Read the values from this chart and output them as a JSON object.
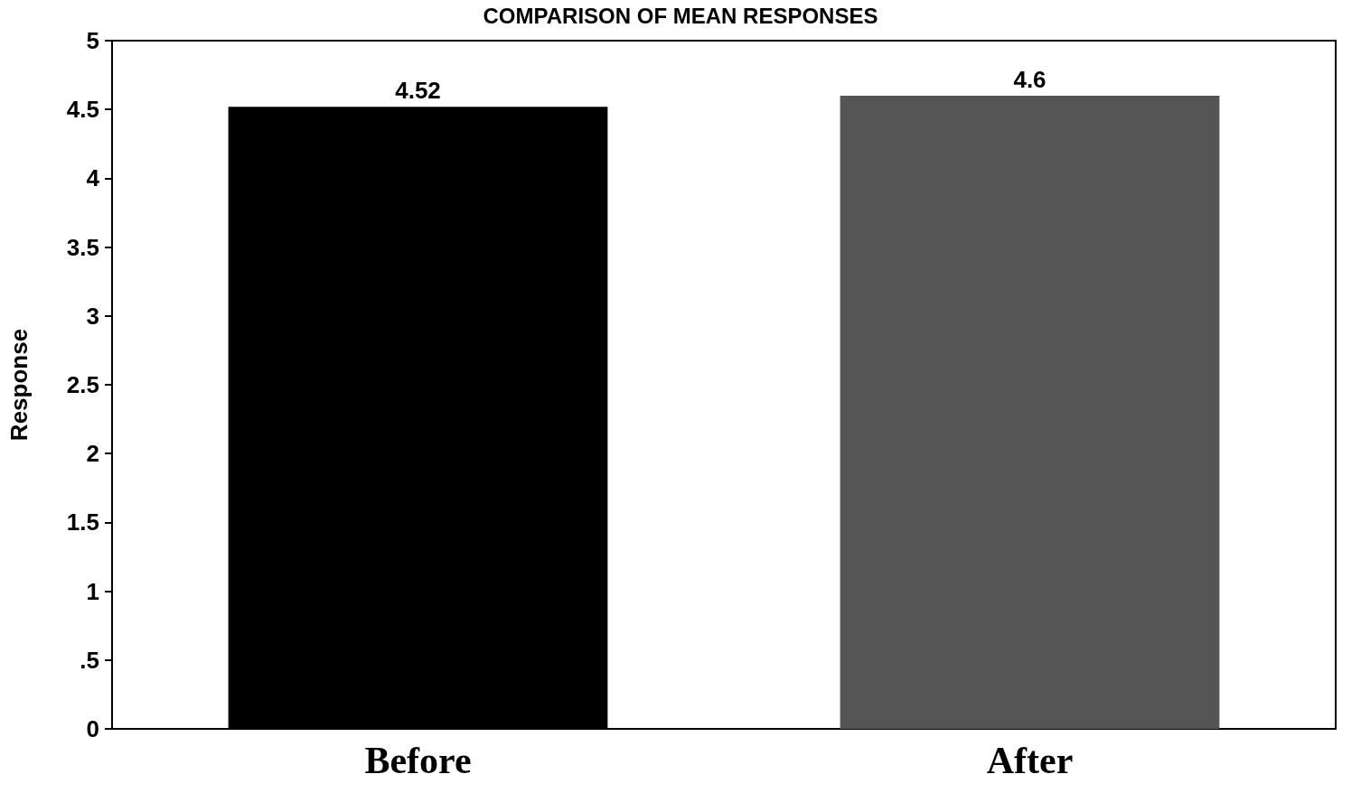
{
  "chart_data": {
    "type": "bar",
    "title": "COMPARISON OF MEAN RESPONSES",
    "ylabel": "Response",
    "categories": [
      "Before",
      "After"
    ],
    "values": [
      4.52,
      4.6
    ],
    "colors": [
      "#000000",
      "#555555"
    ],
    "ylim": [
      0,
      5
    ],
    "yticks": [
      0,
      {
        "value": 0.5,
        "label": ".5"
      },
      1,
      1.5,
      2,
      2.5,
      3,
      3.5,
      4,
      4.5,
      5
    ],
    "grid": false,
    "data_labels": true
  }
}
